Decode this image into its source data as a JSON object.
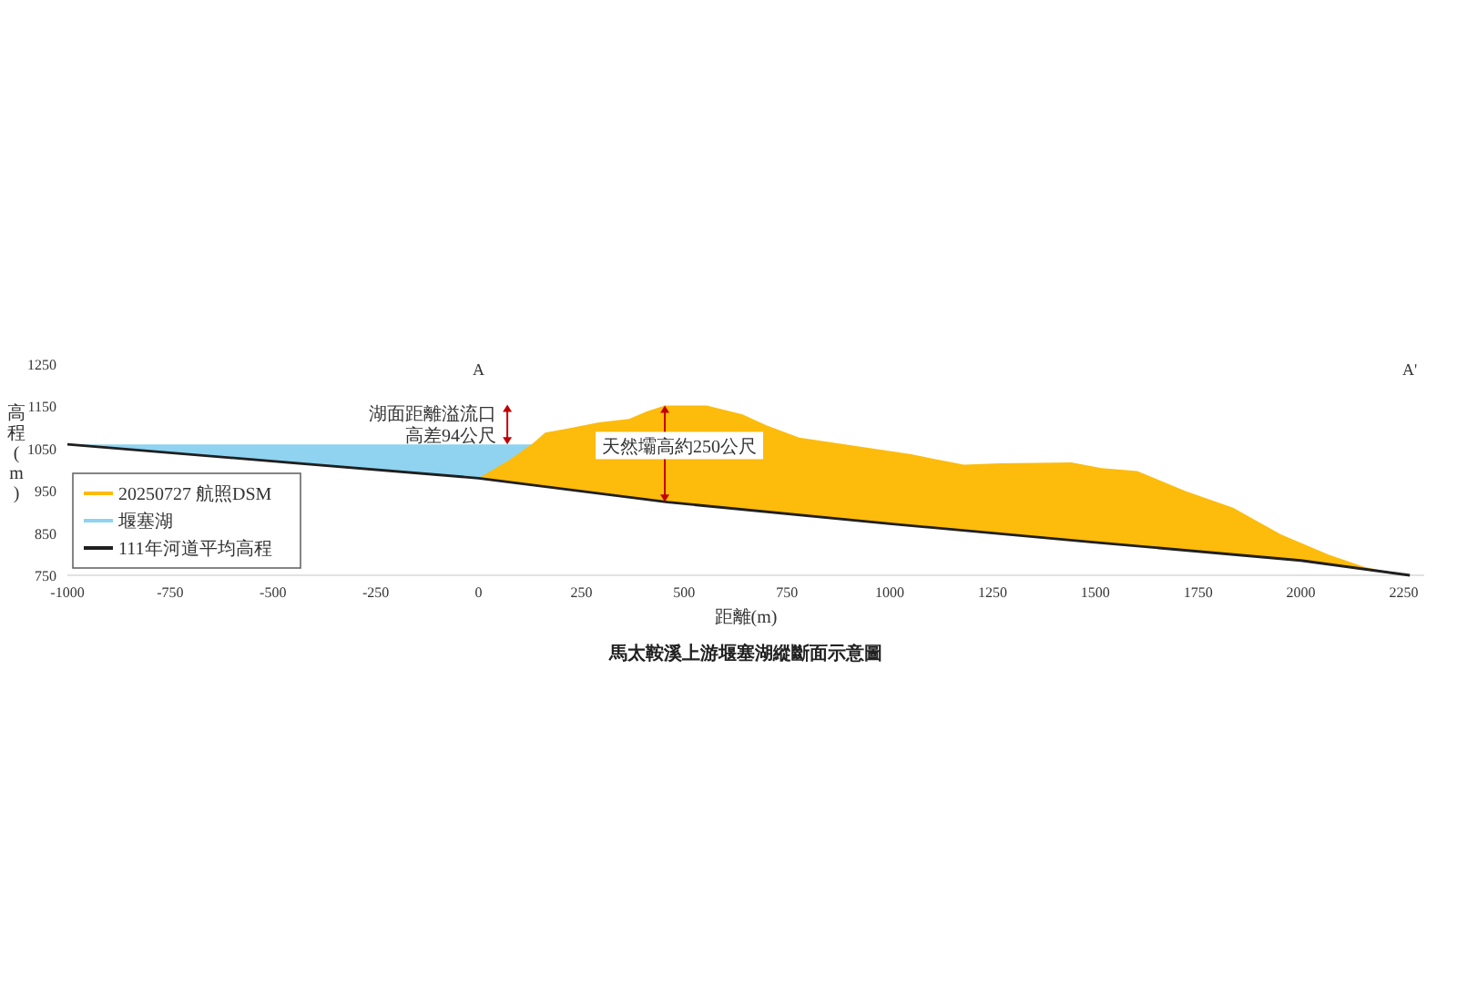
{
  "chart_data": {
    "type": "area",
    "title": "馬太鞍溪上游堰塞湖縱斷面示意圖",
    "xlabel": "距離(m)",
    "ylabel": "高程(m)",
    "xlim": [
      -1000,
      2300
    ],
    "ylim": [
      750,
      1250
    ],
    "xticks": [
      -1000,
      -750,
      -500,
      -250,
      0,
      250,
      500,
      750,
      1000,
      1250,
      1500,
      1750,
      2000,
      2250
    ],
    "yticks": [
      750,
      850,
      950,
      1050,
      1150,
      1250
    ],
    "grid": false,
    "legend": "bottom left",
    "marker": "none",
    "series": [
      {
        "name": "20250727 航照DSM",
        "color": "#fdbb0b",
        "x": [
          0,
          75,
          133,
          162,
          220,
          293,
          366,
          409,
          453,
          511,
          555,
          642,
          700,
          780,
          933,
          1049,
          1180,
          1267,
          1442,
          1515,
          1602,
          1718,
          1835,
          1951,
          2067,
          2154,
          2242,
          2265
        ],
        "values": [
          980,
          1023,
          1063,
          1088,
          1098,
          1112,
          1120,
          1138,
          1152,
          1152,
          1152,
          1131,
          1105,
          1076,
          1054,
          1037,
          1012,
          1015,
          1017,
          1004,
          997,
          950,
          910,
          847,
          799,
          770,
          752,
          750
        ]
      },
      {
        "name": "堰塞湖",
        "color": "#8fd3f0",
        "x": [
          -1000,
          0,
          134
        ],
        "values": [
          1060,
          1060,
          1060
        ]
      },
      {
        "name": "111年河道平均高程",
        "type": "line",
        "color": "#1f1f1f",
        "x": [
          -1000,
          0,
          460,
          1000,
          1500,
          2000,
          2265
        ],
        "values": [
          1060,
          980,
          923,
          872,
          828,
          785,
          750
        ]
      }
    ],
    "annotations": [
      "A",
      "A'",
      {
        "text": "湖面距離溢流口高差94公尺",
        "x": 70,
        "y": 1154
      },
      "天然壩高約250公尺"
    ]
  }
}
